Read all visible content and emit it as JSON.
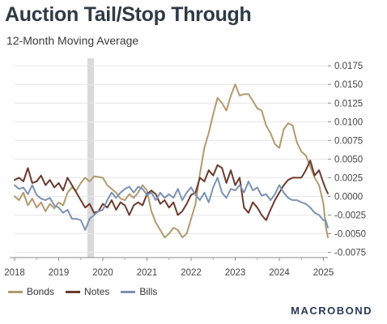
{
  "title": "Auction Tail/Stop Through",
  "subtitle": "12-Month Moving Average",
  "brand": "MACROBOND",
  "colors": {
    "bonds": "#b29a6e",
    "notes": "#6b3a2e",
    "bills": "#7b93b3",
    "shade": "#d9d9d9",
    "grid": "#e6e6e6"
  },
  "chart_data": {
    "type": "line",
    "title": "Auction Tail/Stop Through",
    "subtitle": "12-Month Moving Average",
    "x_ticks": [
      "2018",
      "2019",
      "2020",
      "2021",
      "2022",
      "2023",
      "2024",
      "2025"
    ],
    "xlim": [
      2018.0,
      2025.1
    ],
    "y_ticks": [
      {
        "value": 0.0175,
        "label": "0.0175"
      },
      {
        "value": 0.015,
        "label": "0.0150"
      },
      {
        "value": 0.0125,
        "label": "0.0125"
      },
      {
        "value": 0.01,
        "label": "0.0100"
      },
      {
        "value": 0.0075,
        "label": "0.0075"
      },
      {
        "value": 0.005,
        "label": "0.0050"
      },
      {
        "value": 0.0025,
        "label": "0.0025"
      },
      {
        "value": 0.0,
        "label": "0.0000"
      },
      {
        "value": -0.0025,
        "label": "-0.0025"
      },
      {
        "value": -0.005,
        "label": "-0.0050"
      },
      {
        "value": -0.0075,
        "label": "-0.0075"
      }
    ],
    "ylim": [
      -0.0082,
      0.0185
    ],
    "y_axis_position": "right",
    "shaded_region": [
      2019.65,
      2019.8
    ],
    "legend_position": "bottom-left",
    "series": [
      {
        "name": "Bonds",
        "color_key": "bonds",
        "points": [
          [
            2018.0,
            0.0
          ],
          [
            2018.1,
            -0.0005
          ],
          [
            2018.2,
            0.0005
          ],
          [
            2018.3,
            -0.0012
          ],
          [
            2018.4,
            -0.0003
          ],
          [
            2018.5,
            -0.0015
          ],
          [
            2018.6,
            -0.0008
          ],
          [
            2018.7,
            -0.002
          ],
          [
            2018.8,
            -0.001
          ],
          [
            2018.9,
            -0.0016
          ],
          [
            2019.0,
            -0.0008
          ],
          [
            2019.1,
            -0.0012
          ],
          [
            2019.2,
            0.0005
          ],
          [
            2019.3,
            0.0012
          ],
          [
            2019.4,
            0.0008
          ],
          [
            2019.5,
            0.0018
          ],
          [
            2019.6,
            0.0025
          ],
          [
            2019.7,
            0.002
          ],
          [
            2019.8,
            0.0027
          ],
          [
            2019.9,
            0.0026
          ],
          [
            2020.0,
            0.0025
          ],
          [
            2020.1,
            0.0015
          ],
          [
            2020.2,
            0.001
          ],
          [
            2020.3,
            0.0005
          ],
          [
            2020.4,
            -0.0003
          ],
          [
            2020.5,
            -0.0005
          ],
          [
            2020.6,
            0.0003
          ],
          [
            2020.7,
            -0.0002
          ],
          [
            2020.8,
            0.0005
          ],
          [
            2020.9,
            0.0015
          ],
          [
            2021.0,
            0.0008
          ],
          [
            2021.1,
            -0.002
          ],
          [
            2021.2,
            -0.0035
          ],
          [
            2021.3,
            -0.0045
          ],
          [
            2021.4,
            -0.0055
          ],
          [
            2021.5,
            -0.005
          ],
          [
            2021.6,
            -0.0042
          ],
          [
            2021.7,
            -0.0045
          ],
          [
            2021.8,
            -0.0055
          ],
          [
            2021.9,
            -0.005
          ],
          [
            2022.0,
            -0.003
          ],
          [
            2022.1,
            -0.001
          ],
          [
            2022.2,
            0.003
          ],
          [
            2022.3,
            0.0065
          ],
          [
            2022.4,
            0.0085
          ],
          [
            2022.5,
            0.011
          ],
          [
            2022.6,
            0.0132
          ],
          [
            2022.7,
            0.0125
          ],
          [
            2022.8,
            0.0115
          ],
          [
            2022.9,
            0.0135
          ],
          [
            2023.0,
            0.015
          ],
          [
            2023.1,
            0.0135
          ],
          [
            2023.2,
            0.0137
          ],
          [
            2023.3,
            0.0137
          ],
          [
            2023.4,
            0.0128
          ],
          [
            2023.5,
            0.0118
          ],
          [
            2023.6,
            0.0115
          ],
          [
            2023.7,
            0.0095
          ],
          [
            2023.8,
            0.0085
          ],
          [
            2023.9,
            0.007
          ],
          [
            2024.0,
            0.0065
          ],
          [
            2024.1,
            0.009
          ],
          [
            2024.2,
            0.0098
          ],
          [
            2024.3,
            0.0095
          ],
          [
            2024.4,
            0.0072
          ],
          [
            2024.5,
            0.006
          ],
          [
            2024.6,
            0.0055
          ],
          [
            2024.7,
            0.004
          ],
          [
            2024.8,
            0.0025
          ],
          [
            2024.9,
            0.0015
          ],
          [
            2025.0,
            -0.001
          ],
          [
            2025.05,
            -0.004
          ],
          [
            2025.1,
            -0.0055
          ]
        ]
      },
      {
        "name": "Notes",
        "color_key": "notes",
        "points": [
          [
            2018.0,
            0.0022
          ],
          [
            2018.1,
            0.0025
          ],
          [
            2018.2,
            0.002
          ],
          [
            2018.3,
            0.0038
          ],
          [
            2018.4,
            0.0018
          ],
          [
            2018.5,
            0.002
          ],
          [
            2018.6,
            0.0028
          ],
          [
            2018.7,
            0.0015
          ],
          [
            2018.8,
            0.0022
          ],
          [
            2018.9,
            0.0012
          ],
          [
            2019.0,
            0.0018
          ],
          [
            2019.1,
            0.0008
          ],
          [
            2019.2,
            0.0025
          ],
          [
            2019.3,
            0.0015
          ],
          [
            2019.4,
            0.0005
          ],
          [
            2019.5,
            -0.0005
          ],
          [
            2019.6,
            -0.0015
          ],
          [
            2019.7,
            -0.001
          ],
          [
            2019.8,
            -0.0022
          ],
          [
            2019.9,
            -0.002
          ],
          [
            2020.0,
            -0.001
          ],
          [
            2020.1,
            -0.0015
          ],
          [
            2020.2,
            -0.0005
          ],
          [
            2020.3,
            -0.0018
          ],
          [
            2020.4,
            -0.0008
          ],
          [
            2020.5,
            -0.0012
          ],
          [
            2020.6,
            -0.0025
          ],
          [
            2020.7,
            -0.0012
          ],
          [
            2020.8,
            -0.0008
          ],
          [
            2020.9,
            -0.0012
          ],
          [
            2021.0,
            0.0003
          ],
          [
            2021.1,
            0.0008
          ],
          [
            2021.2,
            0.0003
          ],
          [
            2021.3,
            -0.001
          ],
          [
            2021.4,
            -0.0005
          ],
          [
            2021.5,
            -0.0015
          ],
          [
            2021.6,
            -0.0008
          ],
          [
            2021.7,
            -0.0025
          ],
          [
            2021.8,
            -0.002
          ],
          [
            2021.9,
            -0.001
          ],
          [
            2022.0,
            0.0002
          ],
          [
            2022.1,
            0.0005
          ],
          [
            2022.2,
            0.0025
          ],
          [
            2022.3,
            0.002
          ],
          [
            2022.4,
            0.0035
          ],
          [
            2022.5,
            0.0028
          ],
          [
            2022.6,
            0.0042
          ],
          [
            2022.7,
            0.0038
          ],
          [
            2022.8,
            0.0018
          ],
          [
            2022.9,
            0.0035
          ],
          [
            2023.0,
            0.0015
          ],
          [
            2023.1,
            0.0025
          ],
          [
            2023.2,
            -0.0015
          ],
          [
            2023.3,
            -0.0022
          ],
          [
            2023.4,
            -0.0008
          ],
          [
            2023.5,
            -0.0015
          ],
          [
            2023.6,
            -0.0025
          ],
          [
            2023.7,
            -0.0032
          ],
          [
            2023.8,
            -0.0018
          ],
          [
            2023.9,
            -0.0005
          ],
          [
            2024.0,
            0.0005
          ],
          [
            2024.1,
            0.0015
          ],
          [
            2024.2,
            0.0022
          ],
          [
            2024.3,
            0.0025
          ],
          [
            2024.4,
            0.0025
          ],
          [
            2024.5,
            0.0025
          ],
          [
            2024.6,
            0.0035
          ],
          [
            2024.7,
            0.0048
          ],
          [
            2024.8,
            0.0028
          ],
          [
            2024.9,
            0.0035
          ],
          [
            2025.0,
            0.0018
          ],
          [
            2025.05,
            0.001
          ],
          [
            2025.1,
            0.0004
          ]
        ]
      },
      {
        "name": "Bills",
        "color_key": "bills",
        "points": [
          [
            2018.0,
            0.0015
          ],
          [
            2018.1,
            0.001
          ],
          [
            2018.2,
            0.0012
          ],
          [
            2018.3,
            0.0003
          ],
          [
            2018.4,
            0.0015
          ],
          [
            2018.5,
            0.0002
          ],
          [
            2018.6,
            -0.0003
          ],
          [
            2018.7,
            -0.0005
          ],
          [
            2018.8,
            -0.0002
          ],
          [
            2018.9,
            -0.0012
          ],
          [
            2019.0,
            -0.0015
          ],
          [
            2019.1,
            -0.0022
          ],
          [
            2019.2,
            -0.0018
          ],
          [
            2019.3,
            -0.003
          ],
          [
            2019.4,
            -0.003
          ],
          [
            2019.5,
            -0.0032
          ],
          [
            2019.6,
            -0.0045
          ],
          [
            2019.7,
            -0.003
          ],
          [
            2019.8,
            -0.0025
          ],
          [
            2019.9,
            -0.002
          ],
          [
            2020.0,
            -0.0018
          ],
          [
            2020.1,
            -0.0005
          ],
          [
            2020.2,
            0.0005
          ],
          [
            2020.3,
            -0.0002
          ],
          [
            2020.4,
            0.0005
          ],
          [
            2020.5,
            0.001
          ],
          [
            2020.6,
            0.0013
          ],
          [
            2020.7,
            0.0005
          ],
          [
            2020.8,
            0.0013
          ],
          [
            2020.9,
            0.001
          ],
          [
            2021.0,
            0.0002
          ],
          [
            2021.1,
            0.0005
          ],
          [
            2021.2,
            -0.0005
          ],
          [
            2021.3,
            0.0005
          ],
          [
            2021.4,
            -0.0002
          ],
          [
            2021.5,
            0.0003
          ],
          [
            2021.6,
            -0.0002
          ],
          [
            2021.7,
            0.001
          ],
          [
            2021.8,
            -0.0005
          ],
          [
            2021.9,
            0.0005
          ],
          [
            2022.0,
            0.0012
          ],
          [
            2022.1,
            0.0002
          ],
          [
            2022.2,
            -0.0005
          ],
          [
            2022.3,
            0.0005
          ],
          [
            2022.4,
            -0.0008
          ],
          [
            2022.5,
            0.0012
          ],
          [
            2022.6,
            0.0025
          ],
          [
            2022.7,
            0.0005
          ],
          [
            2022.8,
            -0.0002
          ],
          [
            2022.9,
            0.001
          ],
          [
            2023.0,
            0.0008
          ],
          [
            2023.1,
            0.0015
          ],
          [
            2023.2,
            0.0005
          ],
          [
            2023.3,
            0.002
          ],
          [
            2023.4,
            0.0008
          ],
          [
            2023.5,
            0.0012
          ],
          [
            2023.6,
            0.0001
          ],
          [
            2023.7,
            0.0003
          ],
          [
            2023.8,
            -0.0005
          ],
          [
            2023.9,
            0.0003
          ],
          [
            2024.0,
            0.0015
          ],
          [
            2024.1,
            0.0005
          ],
          [
            2024.2,
            -0.0002
          ],
          [
            2024.3,
            -0.0005
          ],
          [
            2024.4,
            -0.0005
          ],
          [
            2024.5,
            -0.0008
          ],
          [
            2024.6,
            -0.001
          ],
          [
            2024.7,
            -0.0015
          ],
          [
            2024.8,
            -0.0022
          ],
          [
            2024.9,
            -0.0025
          ],
          [
            2025.0,
            -0.0032
          ],
          [
            2025.05,
            -0.0032
          ],
          [
            2025.1,
            -0.0042
          ]
        ]
      }
    ]
  }
}
